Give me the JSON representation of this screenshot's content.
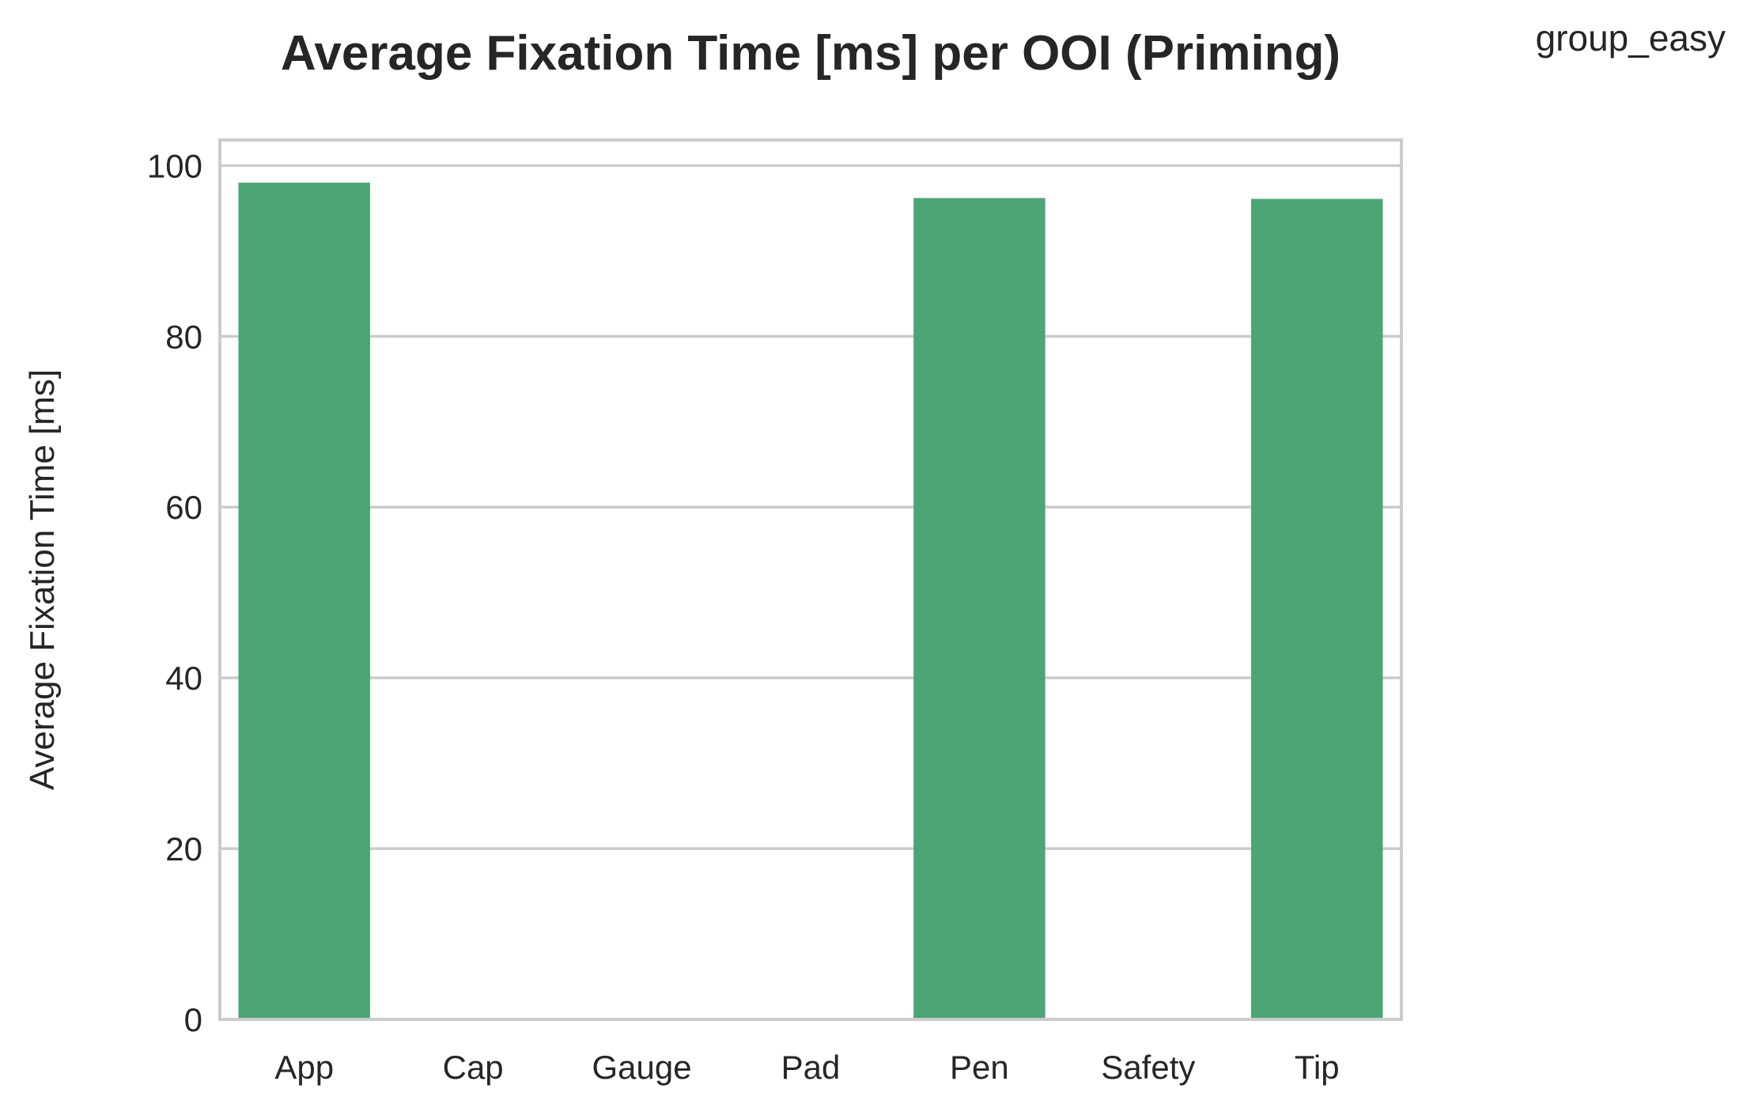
{
  "chart_data": {
    "type": "bar",
    "title": "Average Fixation Time [ms] per OOI (Priming)",
    "ylabel": "Average Fixation Time [ms]",
    "xlabel": "",
    "categories": [
      "App",
      "Cap",
      "Gauge",
      "Pad",
      "Pen",
      "Safety",
      "Tip"
    ],
    "series": [
      {
        "name": "group_easy",
        "values": [
          98.0,
          0,
          0,
          0,
          96.2,
          0,
          96.1
        ],
        "color": "#4ca574"
      }
    ],
    "ylim": [
      0,
      103
    ],
    "yticks": [
      0,
      20,
      40,
      60,
      80,
      100
    ],
    "grid": true,
    "legend_position": "top-right"
  }
}
